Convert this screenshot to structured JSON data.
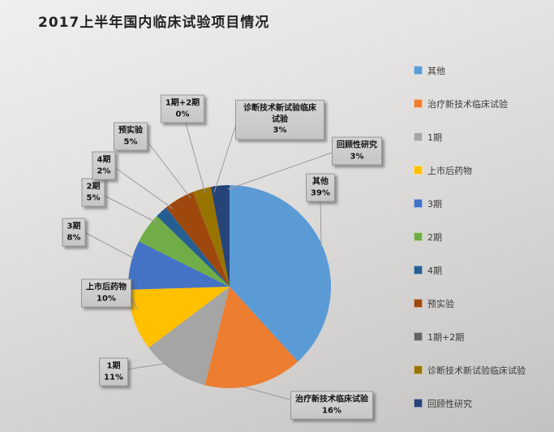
{
  "title": "2017上半年国内临床试验项目情况",
  "chart_data": {
    "type": "pie",
    "title": "2017上半年国内临床试验项目情况",
    "legend_position": "right",
    "data_labels": "category name + percentage in gray callout boxes with leader lines",
    "slices": [
      {
        "label": "其他",
        "value": 39,
        "pct_label": "39%",
        "color": "#5B9BD5"
      },
      {
        "label": "治疗新技术临床试验",
        "value": 16,
        "pct_label": "16%",
        "color": "#ED7D31"
      },
      {
        "label": "1期",
        "value": 11,
        "pct_label": "11%",
        "color": "#A5A5A5"
      },
      {
        "label": "上市后药物",
        "value": 10,
        "pct_label": "10%",
        "color": "#FFC000"
      },
      {
        "label": "3期",
        "value": 8,
        "pct_label": "8%",
        "color": "#4472C4"
      },
      {
        "label": "2期",
        "value": 5,
        "pct_label": "5%",
        "color": "#70AD47"
      },
      {
        "label": "4期",
        "value": 2,
        "pct_label": "2%",
        "color": "#255E91"
      },
      {
        "label": "预实验",
        "value": 5,
        "pct_label": "5%",
        "color": "#9E480E"
      },
      {
        "label": "1期+2期",
        "value": 0,
        "pct_label": "0%",
        "color": "#636363"
      },
      {
        "label": "诊断技术新试验临床试验",
        "value": 3,
        "pct_label": "3%",
        "color": "#997300"
      },
      {
        "label": "回顾性研究",
        "value": 3,
        "pct_label": "3%",
        "color": "#264478"
      }
    ]
  }
}
